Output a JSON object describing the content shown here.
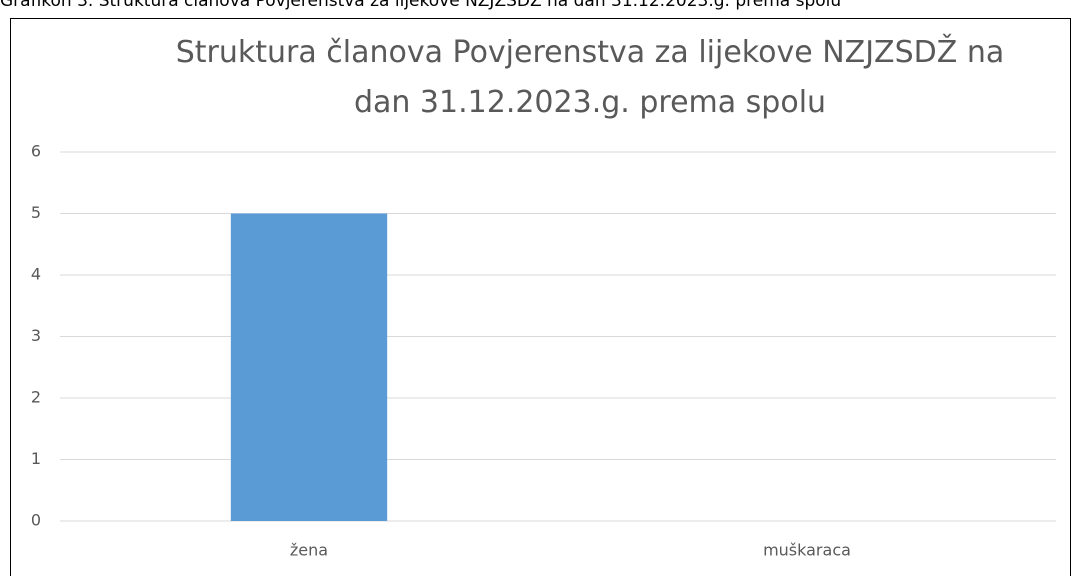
{
  "caption": "Grafikon 3. Struktura članova Povjerenstva za lijekove NZJZSDŽ na dan 31.12.2023.g. prema spolu",
  "chart_data": {
    "type": "bar",
    "title": "Struktura članova Povjerenstva za lijekove NZJZSDŽ na dan 31.12.2023.g. prema spolu",
    "categories": [
      "žena",
      "muškaraca"
    ],
    "values": [
      5,
      0
    ],
    "color": "#5b9bd5",
    "ylim": [
      0,
      6
    ],
    "yticks": [
      0,
      1,
      2,
      3,
      4,
      5,
      6
    ],
    "grid": true
  }
}
